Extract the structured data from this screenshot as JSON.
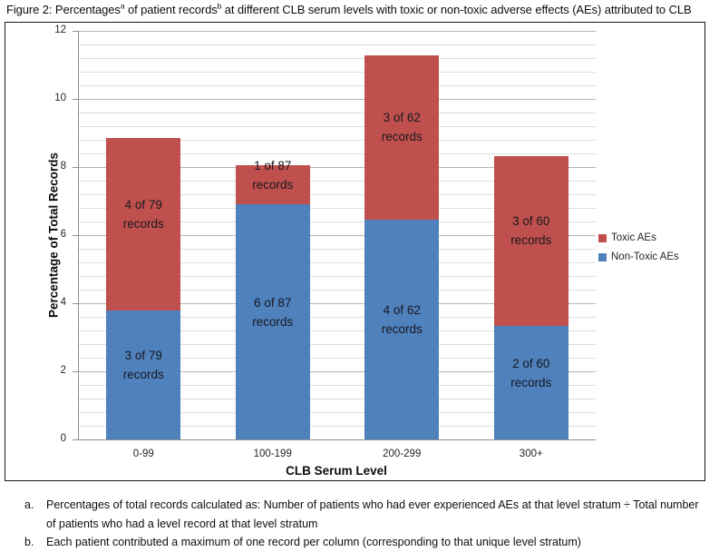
{
  "figure": {
    "title_prefix": "Figure 2: Percentages",
    "sup_a": "a",
    "title_mid": " of patient records",
    "sup_b": "b",
    "title_suffix": " at different CLB serum levels with toxic or non-toxic adverse effects (AEs) attributed to CLB"
  },
  "chart_data": {
    "type": "bar",
    "stacked": true,
    "categories": [
      "0-99",
      "100-199",
      "200-299",
      "300+"
    ],
    "series": [
      {
        "name": "Non-Toxic AEs",
        "color": "#4F81BD",
        "values": [
          3.8,
          6.9,
          6.45,
          3.33
        ],
        "point_labels": [
          "3 of 79\nrecords",
          "6 of 87\nrecords",
          "4 of 62\nrecords",
          "2 of 60\nrecords"
        ]
      },
      {
        "name": "Toxic AEs",
        "color": "#C0504D",
        "values": [
          5.06,
          1.15,
          4.84,
          5.0
        ],
        "point_labels": [
          "4 of 79\nrecords",
          "1 of 87\nrecords",
          "3 of 62\nrecords",
          "3 of 60\nrecords"
        ]
      }
    ],
    "title": "",
    "xlabel": "CLB Serum Level",
    "ylabel": "Percentage of Total Records",
    "ylim": [
      0,
      12
    ],
    "ytick_step": 2,
    "minor_gridline_step": 0.4,
    "grid": true,
    "legend_position": "right"
  },
  "legend": {
    "items": [
      {
        "label": "Toxic AEs",
        "color": "#C0504D"
      },
      {
        "label": "Non-Toxic AEs",
        "color": "#4F81BD"
      }
    ]
  },
  "footnotes": [
    {
      "marker": "a.",
      "text": "Percentages of total records calculated as: Number of patients who had ever experienced AEs at that level stratum ÷ Total number of patients who had a level record at that level stratum"
    },
    {
      "marker": "b.",
      "text": "Each patient contributed a maximum of one record per column (corresponding to that unique level stratum)"
    }
  ]
}
